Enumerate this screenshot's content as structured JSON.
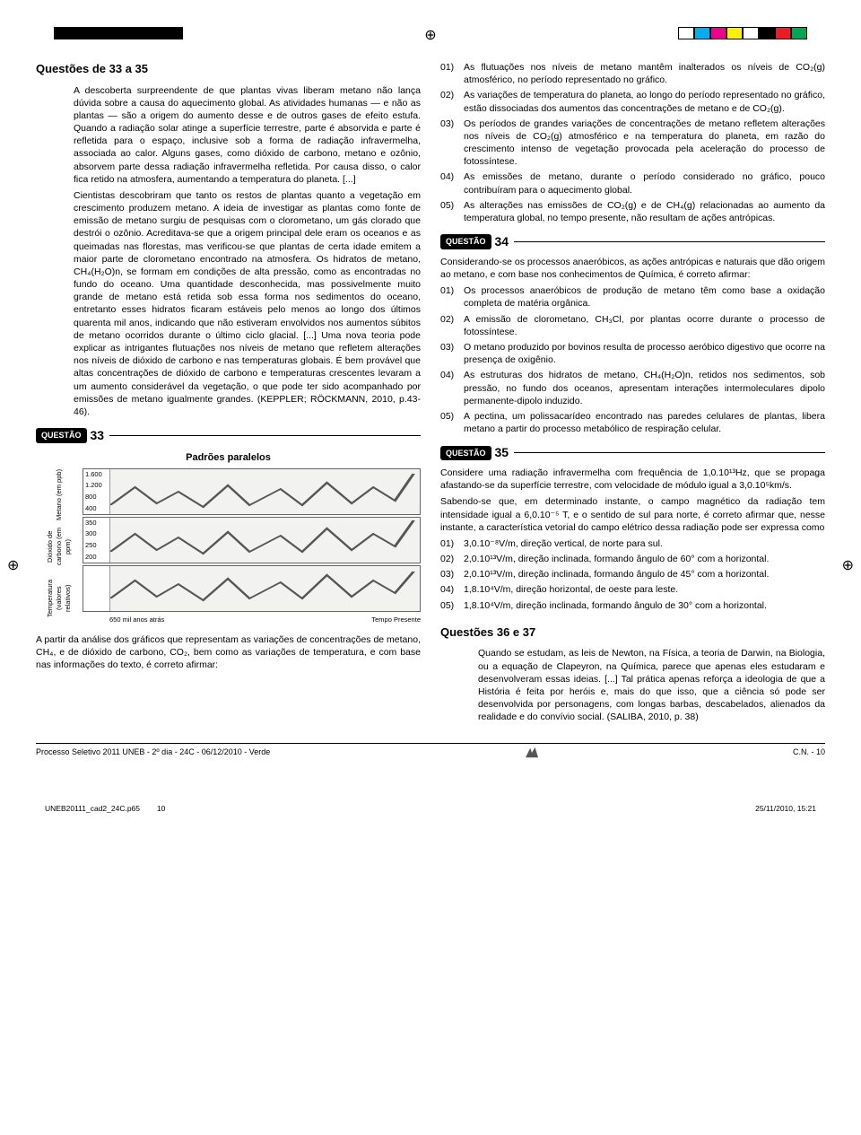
{
  "colorbars": {
    "left": [
      "#000000",
      "#000000",
      "#000000",
      "#000000",
      "#000000",
      "#000000",
      "#000000",
      "#000000"
    ],
    "right": [
      "#ffffff",
      "#00aeef",
      "#ec008c",
      "#fff200",
      "#ffffff",
      "#000000",
      "#ed1c24",
      "#00a651"
    ]
  },
  "title_main": "Questões de 33 a 35",
  "intro_paragraphs": [
    "A descoberta surpreendente de que plantas vivas liberam metano não lança dúvida sobre a causa do aquecimento global. As atividades humanas — e não as plantas — são a origem do aumento desse e de outros gases de efeito estufa. Quando a radiação solar atinge a superfície terrestre, parte é absorvida e parte é refletida para o espaço, inclusive sob a forma de radiação infravermelha, associada ao calor. Alguns gases, como dióxido de carbono, metano e ozônio, absorvem parte dessa radiação infravermelha refletida. Por causa disso, o calor fica retido na atmosfera, aumentando a temperatura do planeta. [...]",
    "Cientistas descobriram que tanto os restos de plantas quanto a vegetação em crescimento produzem metano. A ideia de investigar as plantas como fonte de emissão de metano surgiu de pesquisas com o clorometano, um gás clorado que destrói o ozônio. Acreditava-se que a origem principal dele eram os oceanos e as queimadas nas florestas, mas verificou-se que plantas de certa idade emitem a maior parte de clorometano encontrado na atmosfera. Os hidratos de metano, CH₄(H₂O)n, se formam em condições de alta pressão, como as encontradas no fundo do oceano. Uma quantidade desconhecida, mas possivelmente muito grande de metano está retida sob essa forma nos sedimentos do oceano, entretanto esses hidratos ficaram estáveis pelo menos ao longo dos últimos quarenta mil anos, indicando que não estiveram envolvidos nos aumentos súbitos de metano ocorridos durante o último ciclo glacial. [...] Uma nova teoria pode explicar as intrigantes flutuações nos níveis de metano que refletem alterações nos níveis de dióxido de carbono e nas temperaturas globais. É bem provável que altas concentrações de dióxido de carbono e temperaturas crescentes levaram a um aumento considerável da vegetação, o que pode ter sido acompanhado por emissões de metano igualmente grandes. (KEPPLER; RÖCKMANN, 2010, p.43-46)."
  ],
  "q33": {
    "label": "QUESTÃO",
    "num": "33",
    "chart": {
      "title": "Padrões paralelos",
      "panels": [
        {
          "ylabel": "Metano\n(em ppb)",
          "ticks": [
            "1.600",
            "1.200",
            "800",
            "400"
          ],
          "color": "#888888"
        },
        {
          "ylabel": "Dióxido de carbono\n(em ppm)",
          "ticks": [
            "350",
            "300",
            "250",
            "200"
          ],
          "color": "#888888"
        },
        {
          "ylabel": "Temperatura\n(valores relativos)",
          "ticks": [
            "",
            ""
          ],
          "color": "#888888"
        }
      ],
      "xaxis": {
        "left": "650 mil anos atrás",
        "right": "Tempo Presente"
      },
      "bg": "#f2f2f0",
      "line_color": "#555555"
    },
    "stem": "A partir da análise dos gráficos que representam as variações de concentrações de metano, CH₄, e de dióxido de carbono, CO₂, bem como as variações de temperatura, e com base nas informações do texto, é correto afirmar:",
    "options": [
      "As flutuações nos níveis de metano mantêm inalterados os níveis de CO₂(g) atmosférico, no período representado no gráfico.",
      "As variações de temperatura do planeta, ao longo do período representado no gráfico, estão dissociadas dos aumentos das concentrações de metano e de CO₂(g).",
      "Os períodos de grandes variações de concentrações de metano refletem alterações nos níveis de CO₂(g) atmosférico e na temperatura do planeta, em razão do crescimento intenso de vegetação provocada pela aceleração do processo de fotossíntese.",
      "As emissões de metano, durante o período considerado no gráfico, pouco contribuíram para o aquecimento global.",
      "As alterações nas emissões de CO₂(g) e de CH₄(g) relacionadas ao aumento da temperatura global, no tempo presente, não resultam de ações antrópicas."
    ]
  },
  "q34": {
    "label": "QUESTÃO",
    "num": "34",
    "stem": "Considerando-se os processos anaeróbicos, as ações antrópicas e naturais que dão origem ao metano, e com base nos conhecimentos de Química, é correto afirmar:",
    "options": [
      "Os processos anaeróbicos de produção de metano têm como base a oxidação completa de matéria orgânica.",
      "A emissão de clorometano, CH₃Cl, por plantas ocorre durante o processo de fotossíntese.",
      "O metano produzido por bovinos resulta de processo aeróbico digestivo que ocorre na presença de oxigênio.",
      "As estruturas dos hidratos de metano, CH₄(H₂O)n, retidos nos sedimentos, sob pressão, no fundo dos oceanos, apresentam interações intermoleculares dipolo permanente-dipolo induzido.",
      "A pectina, um polissacarídeo encontrado nas paredes celulares de plantas, libera metano a partir do processo metabólico de respiração celular."
    ]
  },
  "q35": {
    "label": "QUESTÃO",
    "num": "35",
    "stem1": "Considere uma radiação infravermelha com frequência de 1,0.10¹³Hz, que se propaga afastando-se da superfície terrestre, com velocidade de módulo igual a 3,0.10⁵km/s.",
    "stem2": "Sabendo-se que, em determinado instante, o campo magnético da radiação tem intensidade igual a 6,0.10⁻⁵ T, e o sentido de sul para norte, é correto afirmar que, nesse instante, a característica vetorial do campo elétrico dessa radiação pode ser expressa como",
    "options": [
      "3,0.10⁻⁸V/m, direção vertical, de norte para sul.",
      "2,0.10¹³V/m, direção inclinada, formando ângulo de 60° com a horizontal.",
      "2,0.10¹³V/m, direção inclinada, formando ângulo de 45° com a horizontal.",
      "1,8.10⁴V/m, direção horizontal, de oeste para leste.",
      "1,8.10⁴V/m, direção inclinada, formando ângulo de 30° com a horizontal."
    ]
  },
  "title_3637": "Questões 36 e 37",
  "intro_3637": "Quando se estudam, as leis de Newton, na Física, a teoria de Darwin, na Biologia, ou a equação de Clapeyron, na Química, parece que apenas eles estudaram e desenvolveram essas ideias. [...] Tal prática apenas reforça a ideologia de que a História é feita por heróis e, mais do que isso, que a ciência só pode ser desenvolvida por personagens, com longas barbas, descabelados, alienados da realidade e do convívio social. (SALIBA, 2010, p. 38)",
  "footer": {
    "left": "Processo Seletivo 2011 UNEB - 2º dia - 24C - 06/12/2010 - Verde",
    "right": "C.N. - 10"
  },
  "bottom": {
    "file": "UNEB20111_cad2_24C.p65",
    "page": "10",
    "date": "25/11/2010, 15:21"
  }
}
